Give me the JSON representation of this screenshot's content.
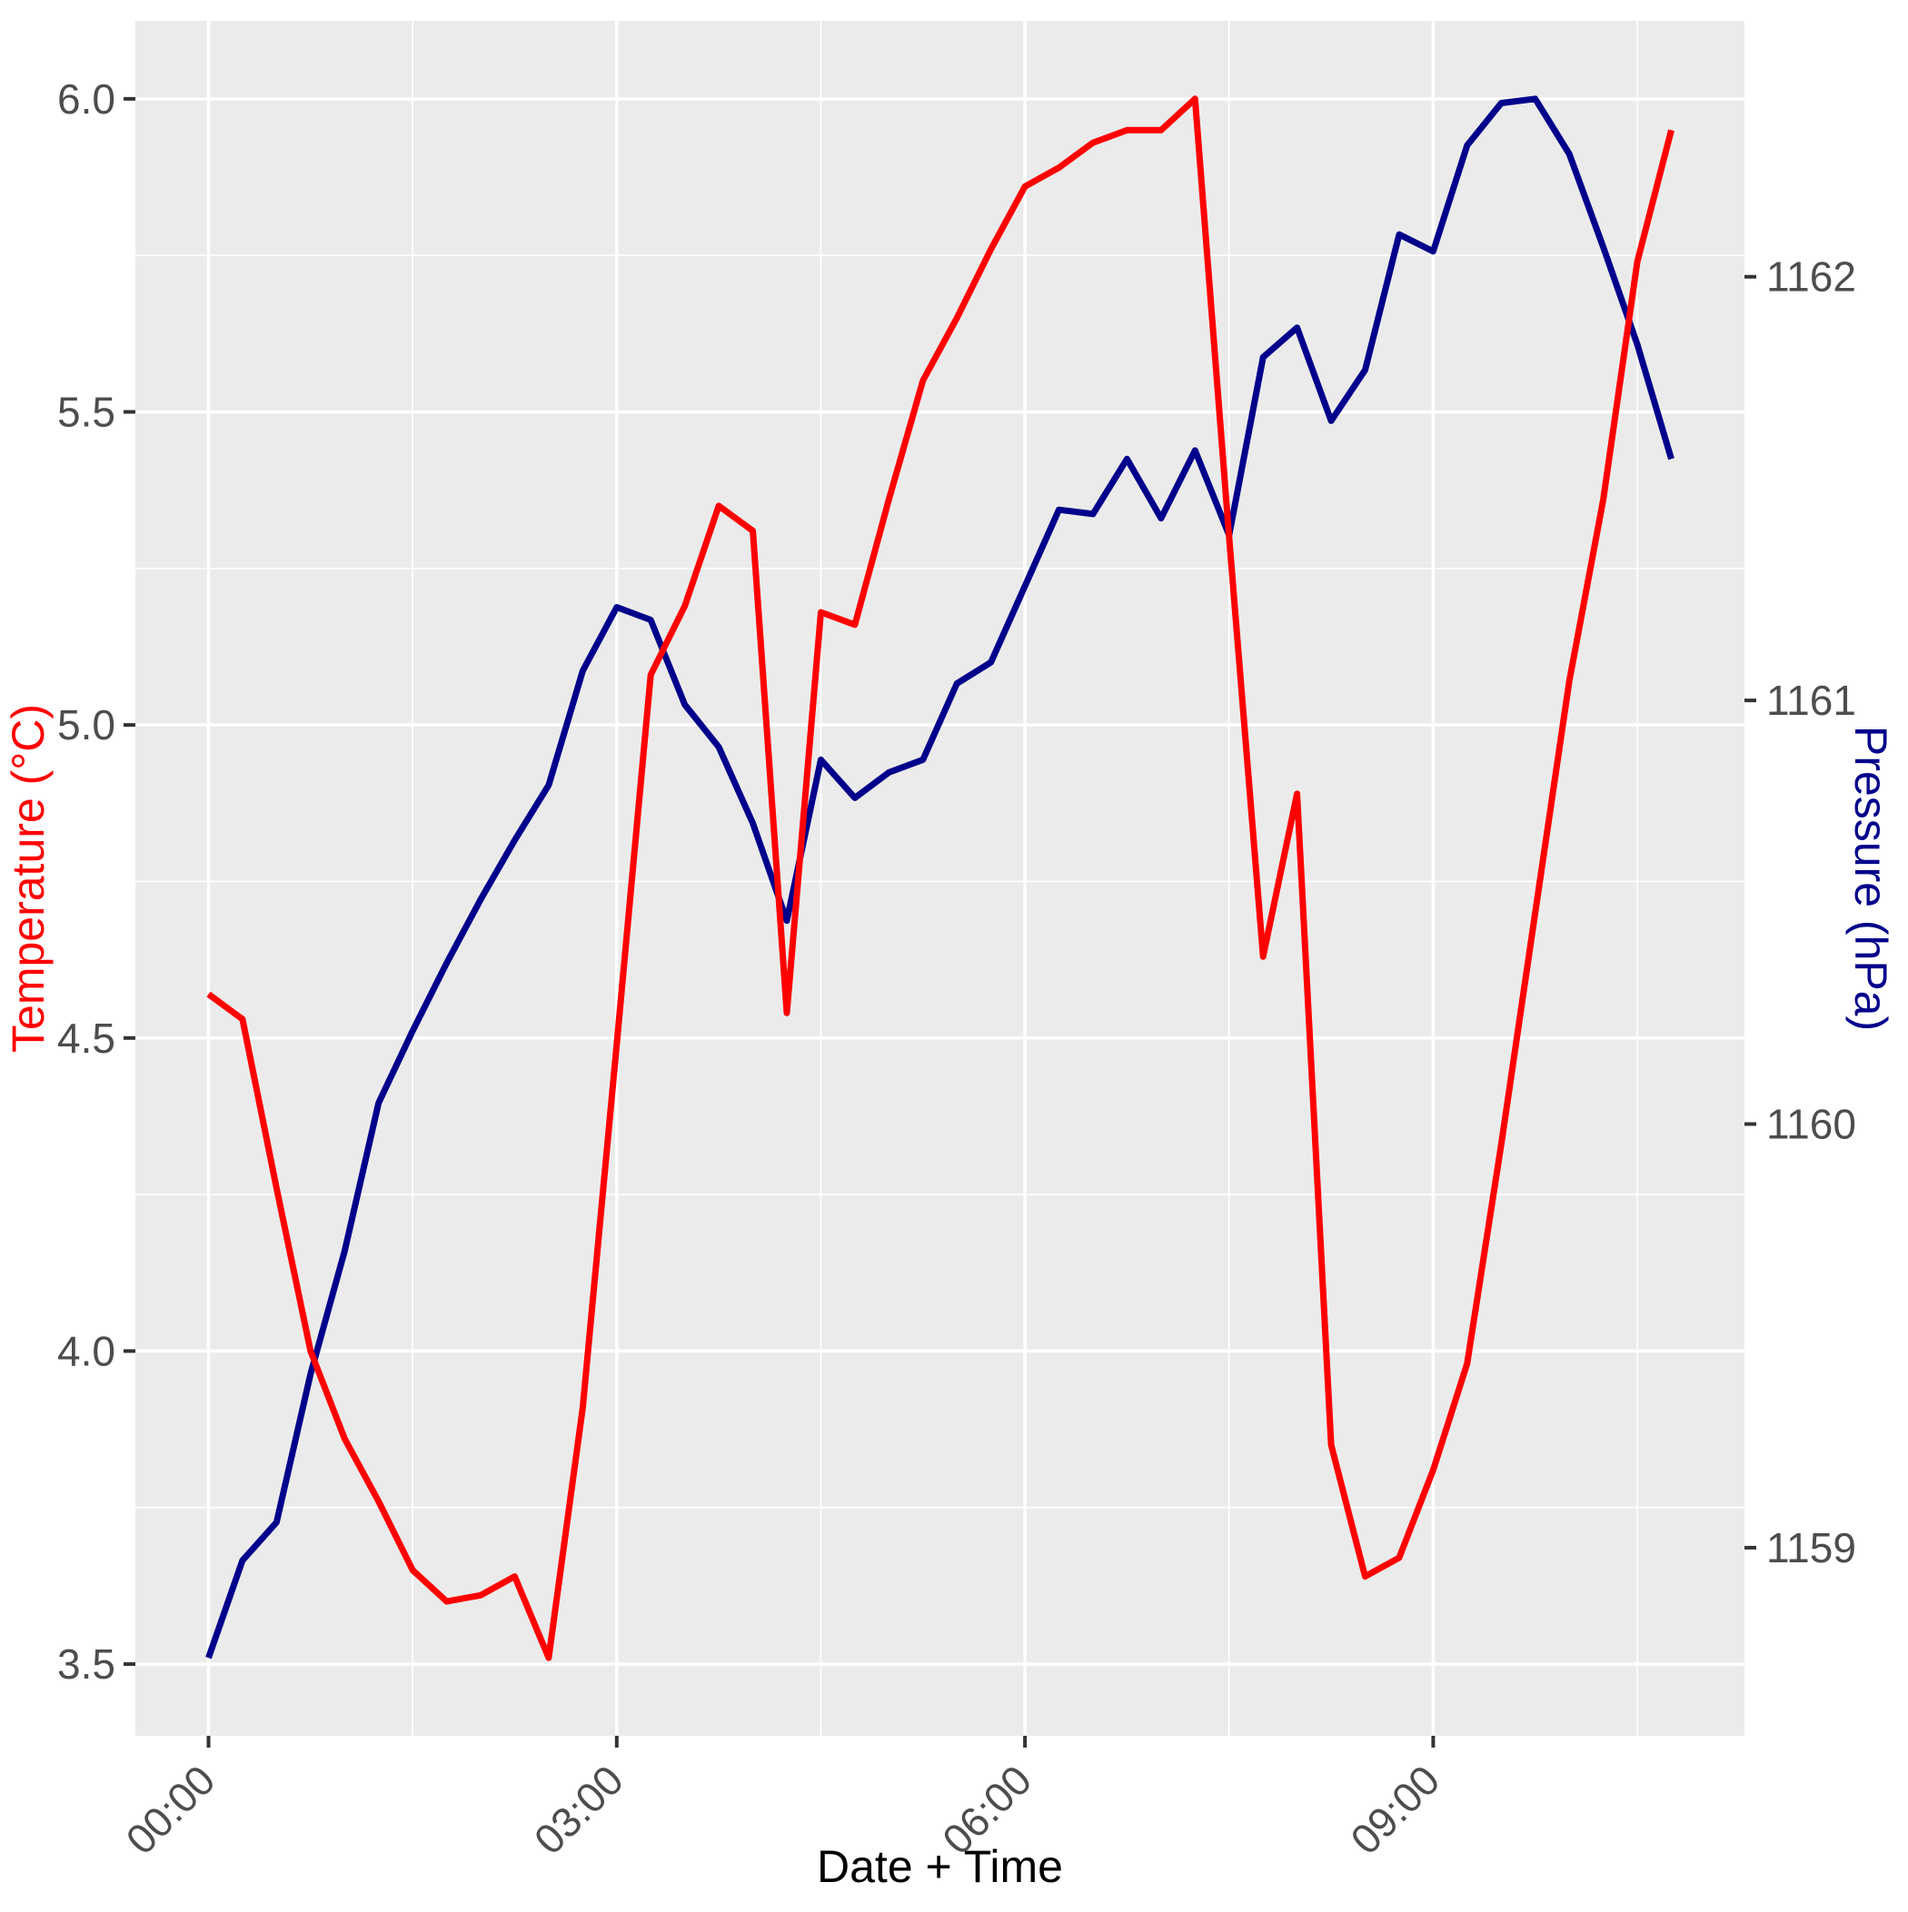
{
  "chart_data": {
    "type": "line",
    "title": "",
    "xlabel": "Date + Time",
    "ylabel_left": "Temperature (°C)",
    "ylabel_right": "Pressure (hPa)",
    "legend_position": "none",
    "grid": "on",
    "x_times": [
      "00:00",
      "00:15",
      "00:30",
      "00:45",
      "01:00",
      "01:15",
      "01:30",
      "01:45",
      "02:00",
      "02:15",
      "02:30",
      "02:45",
      "03:00",
      "03:15",
      "03:30",
      "03:45",
      "04:00",
      "04:15",
      "04:30",
      "04:45",
      "05:00",
      "05:15",
      "05:30",
      "05:45",
      "06:00",
      "06:15",
      "06:30",
      "06:45",
      "07:00",
      "07:15",
      "07:30",
      "07:45",
      "08:00",
      "08:15",
      "08:30",
      "08:45",
      "09:00",
      "09:15",
      "09:30",
      "09:45",
      "10:00",
      "10:15",
      "10:30",
      "10:45"
    ],
    "series": [
      {
        "name": "Temperature (°C)",
        "axis": "left",
        "color": "#FF0000",
        "values": [
          4.57,
          4.53,
          4.26,
          4.0,
          3.86,
          3.76,
          3.65,
          3.6,
          3.61,
          3.64,
          3.51,
          3.91,
          4.49,
          5.08,
          5.19,
          5.35,
          5.31,
          4.54,
          5.18,
          5.16,
          5.36,
          5.55,
          5.65,
          5.76,
          5.86,
          5.89,
          5.93,
          5.95,
          5.95,
          6.0,
          5.3,
          4.63,
          4.89,
          3.85,
          3.64,
          3.67,
          3.81,
          3.98,
          4.33,
          4.7,
          5.07,
          5.36,
          5.74,
          5.95
        ]
      },
      {
        "name": "Pressure (hPa)",
        "axis": "right",
        "color": "#00008B",
        "values": [
          1158.74,
          1158.97,
          1159.06,
          1159.41,
          1159.7,
          1160.05,
          1160.22,
          1160.38,
          1160.53,
          1160.67,
          1160.8,
          1161.07,
          1161.22,
          1161.19,
          1160.99,
          1160.89,
          1160.71,
          1160.48,
          1160.86,
          1160.77,
          1160.83,
          1160.86,
          1161.04,
          1161.09,
          1161.27,
          1161.45,
          1161.44,
          1161.57,
          1161.43,
          1161.59,
          1161.39,
          1161.81,
          1161.88,
          1161.66,
          1161.78,
          1162.1,
          1162.06,
          1162.31,
          1162.41,
          1162.42,
          1162.29,
          1162.07,
          1161.84,
          1161.57
        ]
      }
    ],
    "x_axis": {
      "tick_labels": [
        "00:00",
        "03:00",
        "06:00",
        "09:00"
      ],
      "tick_hours": [
        0,
        3,
        6,
        9
      ],
      "minor_hours": [
        1.5,
        4.5,
        7.5,
        10.5
      ],
      "label_angle_deg": 45
    },
    "left_axis": {
      "tick_labels": [
        "3.5",
        "4.0",
        "4.5",
        "5.0",
        "5.5",
        "6.0"
      ],
      "tick_values": [
        3.5,
        4.0,
        4.5,
        5.0,
        5.5,
        6.0
      ],
      "minor_values": [
        3.75,
        4.25,
        4.75,
        5.25,
        5.75
      ]
    },
    "right_axis": {
      "tick_labels": [
        "1159",
        "1160",
        "1161",
        "1162"
      ],
      "tick_values": [
        1159,
        1160,
        1161,
        1162
      ]
    },
    "expansion": 0.05,
    "colors": {
      "temperature_line": "#FF0000",
      "pressure_line": "#00008B",
      "panel_background": "#EBEBEB",
      "gridline": "#FFFFFF",
      "tick_label": "#4D4D4D",
      "tick_mark": "#333333",
      "x_title": "#000000"
    }
  }
}
